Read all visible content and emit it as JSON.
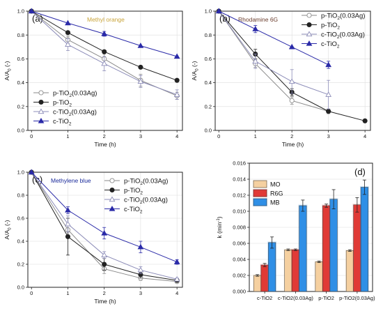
{
  "colors": {
    "p_TiO2_003Ag": "#8a8a8a",
    "p_TiO2": "#222222",
    "c_TiO2_003Ag": "#8c8cb8",
    "c_TiO2": "#2a2aa8",
    "MO": "#f5d0a0",
    "R6G": "#e03a36",
    "MB": "#2f8fe6"
  },
  "chart_data": [
    {
      "panel": "(a)",
      "type": "line",
      "dye_label": "Methyl orange",
      "dye_color": "#c9a43a",
      "xlabel": "Time (h)",
      "ylabel": "A/A0 (-)",
      "ylabel_main": "A/A",
      "ylabel_sub": "0",
      "ylabel_tail": " (-)",
      "xlim": [
        -0.1,
        4.15
      ],
      "ylim": [
        0,
        1.0
      ],
      "xticks": [
        "0",
        "1",
        "2",
        "3",
        "4"
      ],
      "yticks": [
        "0.0",
        "0.2",
        "0.4",
        "0.6",
        "0.8",
        "1.0"
      ],
      "legend_position": "lower-left",
      "x": [
        0,
        1,
        2,
        3,
        4
      ],
      "series": [
        {
          "legend": [
            "p-TiO",
            "2",
            "(0.03Ag)"
          ],
          "key": "p_TiO2_003Ag",
          "marker": "circle-open",
          "values": [
            1.0,
            0.76,
            0.6,
            0.42,
            0.29
          ],
          "errors": [
            0,
            0.03,
            0.04,
            0.05,
            0.03
          ]
        },
        {
          "legend": [
            "p-TiO",
            "2",
            ""
          ],
          "key": "p_TiO2",
          "marker": "circle-filled",
          "values": [
            1.0,
            0.82,
            0.66,
            0.53,
            0.42
          ],
          "errors": [
            0,
            0.0,
            0.0,
            0.0,
            0.0
          ]
        },
        {
          "legend": [
            "c-TiO",
            "2",
            "(0.03Ag)"
          ],
          "key": "c_TiO2_003Ag",
          "marker": "triangle-open",
          "values": [
            1.0,
            0.72,
            0.56,
            0.41,
            0.3
          ],
          "errors": [
            0,
            0.05,
            0.06,
            0.05,
            0.04
          ]
        },
        {
          "legend": [
            "c-TiO",
            "2",
            ""
          ],
          "key": "c_TiO2",
          "marker": "triangle-filled",
          "values": [
            1.0,
            0.9,
            0.81,
            0.71,
            0.62
          ],
          "errors": [
            0,
            0.0,
            0.02,
            0.0,
            0.0
          ]
        }
      ]
    },
    {
      "panel": "(b)",
      "type": "line",
      "dye_label": "Rhodamine 6G",
      "dye_color": "#6b3e2e",
      "xlabel": "Time (h)",
      "ylabel": "A/A0 (-)",
      "ylabel_main": "A/A",
      "ylabel_sub": "0",
      "ylabel_tail": " (-)",
      "xlim": [
        -0.1,
        4.15
      ],
      "ylim": [
        0,
        1.0
      ],
      "xticks": [
        "0",
        "1",
        "2",
        "3",
        "4"
      ],
      "yticks": [
        "0.0",
        "0.2",
        "0.4",
        "0.6",
        "0.8",
        "1.0"
      ],
      "legend_position": "top-right",
      "x": [
        0,
        1,
        2,
        3,
        4
      ],
      "series": [
        {
          "legend": [
            "p-TiO",
            "2",
            "(0.03Ag)"
          ],
          "key": "p_TiO2_003Ag",
          "marker": "circle-open",
          "values": [
            1.0,
            0.56,
            0.25,
            0.16,
            null
          ],
          "errors": [
            0,
            0.03,
            0.03,
            0.02,
            0
          ]
        },
        {
          "legend": [
            "p-TiO",
            "2",
            ""
          ],
          "key": "p_TiO2",
          "marker": "circle-filled",
          "values": [
            1.0,
            0.64,
            0.32,
            0.16,
            0.08
          ],
          "errors": [
            0,
            0.04,
            0.03,
            0.0,
            0.0
          ]
        },
        {
          "legend": [
            "c-TiO",
            "2",
            "(0.03Ag)"
          ],
          "key": "c_TiO2_003Ag",
          "marker": "triangle-open",
          "values": [
            1.0,
            0.58,
            0.41,
            0.3,
            null
          ],
          "errors": [
            0,
            0.06,
            0.1,
            0.12,
            0
          ]
        },
        {
          "legend": [
            "c-TiO",
            "2",
            ""
          ],
          "key": "c_TiO2",
          "marker": "triangle-filled",
          "values": [
            1.0,
            0.85,
            0.7,
            0.55,
            null
          ],
          "errors": [
            0,
            0.03,
            0.0,
            0.03,
            0
          ]
        }
      ]
    },
    {
      "panel": "(c)",
      "type": "line",
      "dye_label": "Methylene blue",
      "dye_color": "#1a2a9a",
      "xlabel": "Time (h)",
      "ylabel": "A/A0 (-)",
      "ylabel_main": "A/A",
      "ylabel_sub": "0",
      "ylabel_tail": " (-)",
      "xlim": [
        -0.1,
        4.15
      ],
      "ylim": [
        0,
        1.0
      ],
      "xticks": [
        "0",
        "1",
        "2",
        "3",
        "4"
      ],
      "yticks": [
        "0.0",
        "0.2",
        "0.4",
        "0.6",
        "0.8",
        "1.0"
      ],
      "legend_position": "top-right",
      "x": [
        0,
        1,
        2,
        3,
        4
      ],
      "series": [
        {
          "legend": [
            "p-TiO",
            "2",
            "(0.03Ag)"
          ],
          "key": "p_TiO2_003Ag",
          "marker": "circle-open",
          "values": [
            1.0,
            0.5,
            0.16,
            0.08,
            0.05
          ],
          "errors": [
            0,
            0.05,
            0.04,
            0.02,
            0.01
          ]
        },
        {
          "legend": [
            "p-TiO",
            "2",
            ""
          ],
          "key": "p_TiO2",
          "marker": "circle-filled",
          "values": [
            1.0,
            0.44,
            0.2,
            0.11,
            0.06
          ],
          "errors": [
            0,
            0.16,
            0.05,
            0.03,
            0.01
          ]
        },
        {
          "legend": [
            "c-TiO",
            "2",
            "(0.03Ag)"
          ],
          "key": "c_TiO2_003Ag",
          "marker": "triangle-open",
          "values": [
            1.0,
            0.55,
            0.28,
            0.15,
            0.07
          ],
          "errors": [
            0,
            0.07,
            0.03,
            0.03,
            0.01
          ]
        },
        {
          "legend": [
            "c-TiO",
            "2",
            ""
          ],
          "key": "c_TiO2",
          "marker": "triangle-filled",
          "values": [
            1.0,
            0.67,
            0.47,
            0.35,
            0.22
          ],
          "errors": [
            0,
            0.03,
            0.05,
            0.05,
            0.02
          ]
        }
      ]
    },
    {
      "panel": "(d)",
      "type": "bar",
      "ylabel": "k (min-1)",
      "ylabel_main": "k (min",
      "ylabel_sup": "-1",
      "ylabel_tail": ")",
      "ylim": [
        0,
        0.016
      ],
      "yticks": [
        "0.000",
        "0.002",
        "0.004",
        "0.006",
        "0.008",
        "0.010",
        "0.012",
        "0.014",
        "0.016"
      ],
      "legend_position": "top-left",
      "categories": [
        "c-TiO2",
        "c-TiO2(0.03Ag)",
        "p-TiO2",
        "p-TiO2(0.03Ag)"
      ],
      "series": [
        {
          "name": "MO",
          "key": "MO",
          "values": [
            0.002,
            0.0052,
            0.0037,
            0.0051
          ],
          "errors": [
            0.0001,
            0.0001,
            0.0001,
            0.0001
          ]
        },
        {
          "name": "R6G",
          "key": "R6G",
          "values": [
            0.0033,
            0.0052,
            0.0107,
            0.0108
          ],
          "errors": [
            0.0002,
            0.0001,
            0.0002,
            0.0009
          ]
        },
        {
          "name": "MB",
          "key": "MB",
          "values": [
            0.0061,
            0.0107,
            0.0115,
            0.013
          ],
          "errors": [
            0.0007,
            0.0007,
            0.0012,
            0.0009
          ]
        }
      ]
    }
  ]
}
